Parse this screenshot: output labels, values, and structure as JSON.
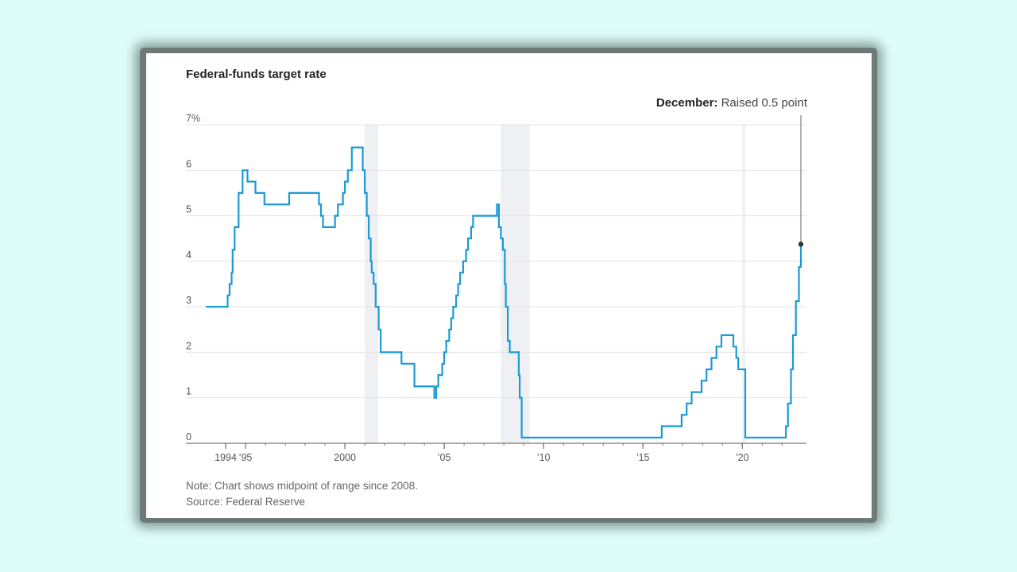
{
  "chart_data": {
    "type": "line",
    "title": "Federal-funds target rate",
    "subtitle": "",
    "xlabel": "",
    "ylabel": "",
    "xlim": [
      1993.0,
      2022.95
    ],
    "ylim": [
      0,
      7
    ],
    "grid": true,
    "y_ticks": [
      0,
      1,
      2,
      3,
      4,
      5,
      6,
      7
    ],
    "y_tick_labels": [
      "0",
      "1",
      "2",
      "3",
      "4",
      "5",
      "6",
      "7%"
    ],
    "x_ticks": [
      1994,
      1995,
      2000,
      2005,
      2010,
      2015,
      2020
    ],
    "x_tick_labels": [
      "1994",
      "’95",
      "2000",
      "’05",
      "’10",
      "’15",
      "’20"
    ],
    "recessions": [
      [
        2001.0,
        2001.67
      ],
      [
        2007.85,
        2009.3
      ],
      [
        2020.0,
        2020.15
      ]
    ],
    "series": [
      {
        "color": "#1a9ad6",
        "x": [
          1993.0,
          1994.1,
          1994.2,
          1994.3,
          1994.35,
          1994.45,
          1994.65,
          1994.85,
          1995.1,
          1995.5,
          1995.95,
          1996.05,
          1997.2,
          1998.7,
          1998.8,
          1998.9,
          1999.5,
          1999.65,
          1999.9,
          2000.0,
          2000.15,
          2000.35,
          2000.9,
          2001.0,
          2001.1,
          2001.2,
          2001.3,
          2001.35,
          2001.45,
          2001.55,
          2001.7,
          2001.8,
          2002.85,
          2003.5,
          2004.5,
          2004.6,
          2004.7,
          2004.9,
          2005.0,
          2005.1,
          2005.25,
          2005.35,
          2005.45,
          2005.6,
          2005.7,
          2005.8,
          2005.95,
          2006.1,
          2006.2,
          2006.35,
          2006.45,
          2007.65,
          2007.75,
          2007.85,
          2007.95,
          2008.05,
          2008.1,
          2008.2,
          2008.3,
          2008.75,
          2008.8,
          2008.9,
          2008.95,
          2015.95,
          2016.95,
          2017.2,
          2017.45,
          2017.95,
          2018.2,
          2018.45,
          2018.7,
          2018.95,
          2019.55,
          2019.7,
          2019.8,
          2020.15,
          2020.2,
          2022.2,
          2022.3,
          2022.45,
          2022.55,
          2022.7,
          2022.85,
          2022.95
        ],
        "y": [
          3.0,
          3.25,
          3.5,
          3.75,
          4.25,
          4.75,
          5.5,
          6.0,
          5.75,
          5.5,
          5.25,
          5.25,
          5.5,
          5.25,
          5.0,
          4.75,
          5.0,
          5.25,
          5.5,
          5.75,
          6.0,
          6.5,
          6.0,
          5.5,
          5.0,
          4.5,
          4.0,
          3.75,
          3.5,
          3.0,
          2.5,
          2.0,
          1.75,
          1.25,
          1.0,
          1.25,
          1.5,
          1.75,
          2.0,
          2.25,
          2.5,
          2.75,
          3.0,
          3.25,
          3.5,
          3.75,
          4.0,
          4.25,
          4.5,
          4.75,
          5.0,
          5.25,
          4.75,
          4.5,
          4.25,
          3.5,
          3.0,
          2.25,
          2.0,
          1.5,
          1.0,
          0.125,
          0.125,
          0.375,
          0.625,
          0.875,
          1.125,
          1.375,
          1.625,
          1.875,
          2.125,
          2.375,
          2.125,
          1.875,
          1.625,
          0.125,
          0.125,
          0.375,
          0.875,
          1.625,
          2.375,
          3.125,
          3.875,
          4.375
        ]
      }
    ],
    "annotation": {
      "bold": "December:",
      "text": " Raised 0.5 point",
      "x": 2022.95,
      "y": 4.375
    }
  },
  "footer": {
    "note": "Note: Chart shows midpoint of range since 2008.",
    "source": "Source: Federal Reserve"
  }
}
